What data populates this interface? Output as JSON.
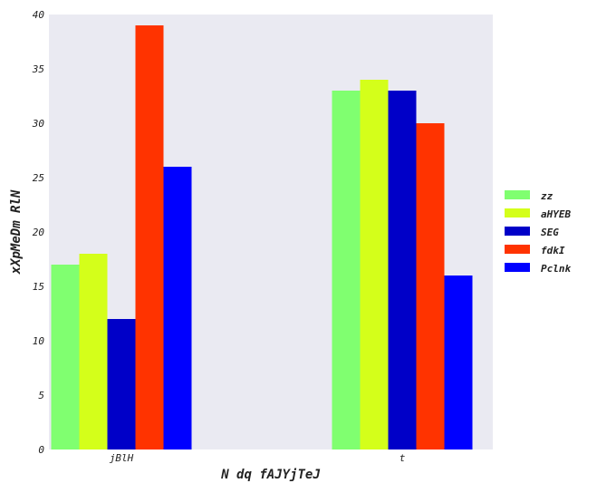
{
  "chart_data": {
    "type": "bar",
    "title": "",
    "xlabel": "N dq fAJYjTeJ",
    "ylabel": "xXpMeDm RlN",
    "categories": [
      "jBlH",
      "t"
    ],
    "ylim": [
      0,
      40
    ],
    "yticks": [
      0,
      5,
      10,
      15,
      20,
      25,
      30,
      35,
      40
    ],
    "grid": false,
    "legend_position": "right",
    "series": [
      {
        "name": "zz",
        "color": "#80ff70",
        "values": [
          17,
          33
        ]
      },
      {
        "name": "aHYEB",
        "color": "#d4ff1a",
        "values": [
          18,
          34
        ]
      },
      {
        "name": "SEG",
        "color": "#0000c8",
        "values": [
          12,
          33
        ]
      },
      {
        "name": "fdkI",
        "color": "#ff3300",
        "values": [
          39,
          30
        ]
      },
      {
        "name": "Pclnk",
        "color": "#0000ff",
        "values": [
          26,
          16
        ]
      }
    ]
  }
}
